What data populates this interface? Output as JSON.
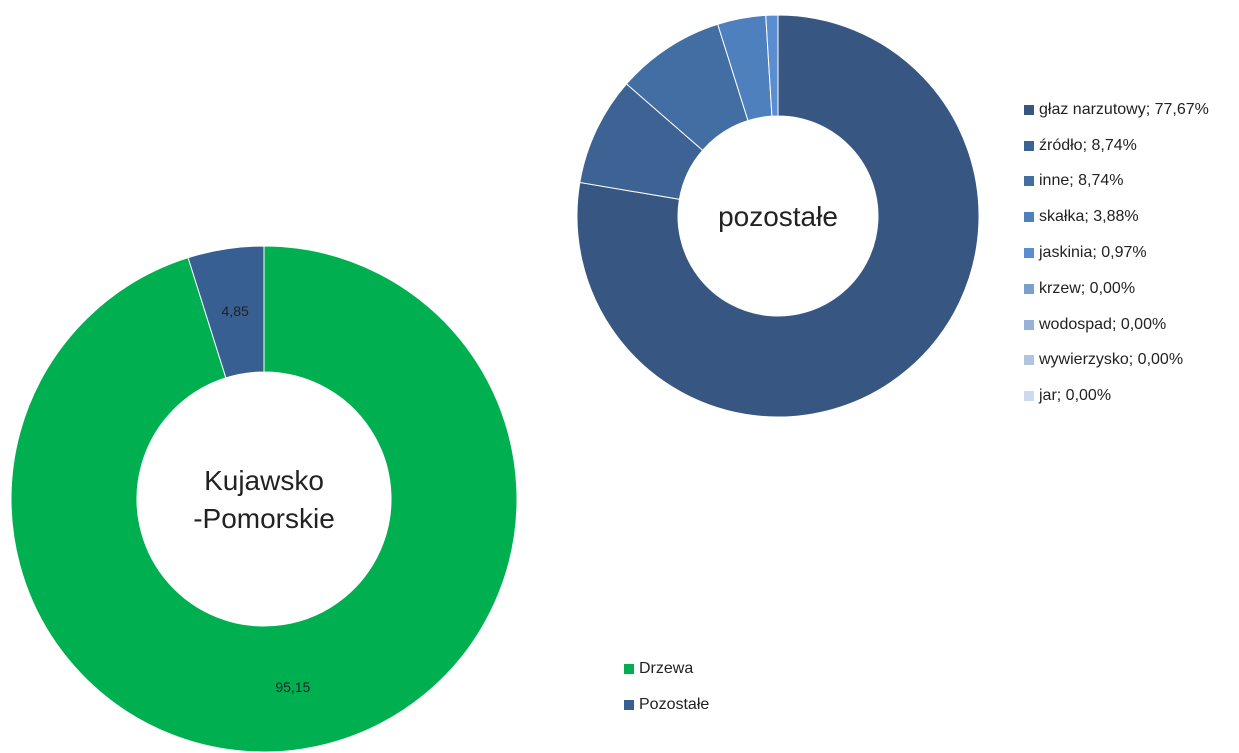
{
  "chart_data": [
    {
      "type": "donut",
      "center_label_lines": [
        "Kujawsko",
        "-Pomorskie"
      ],
      "series": [
        {
          "name": "Drzewa",
          "value": 95.15,
          "label": "95,15",
          "color": "#00b050"
        },
        {
          "name": "Pozostałe",
          "value": 4.85,
          "label": "4,85",
          "color": "#375f92"
        }
      ],
      "legend": {
        "position": "right",
        "items": [
          "Drzewa",
          "Pozostałe"
        ]
      }
    },
    {
      "type": "donut",
      "center_label_lines": [
        "pozostałe"
      ],
      "series": [
        {
          "name": "głaz narzutowy",
          "value": 77.67,
          "color": "#375782"
        },
        {
          "name": "źródło",
          "value": 8.74,
          "color": "#3c6394"
        },
        {
          "name": "inne",
          "value": 8.74,
          "color": "#436ea3"
        },
        {
          "name": "skałka",
          "value": 3.88,
          "color": "#4f80be"
        },
        {
          "name": "jaskinia",
          "value": 0.97,
          "color": "#5b8ed0"
        },
        {
          "name": "krzew",
          "value": 0.0,
          "color": "#7b9fcf"
        },
        {
          "name": "wodospad",
          "value": 0.0,
          "color": "#97b1d8"
        },
        {
          "name": "wywierzysko",
          "value": 0.0,
          "color": "#b2c4e2"
        },
        {
          "name": "jar",
          "value": 0.0,
          "color": "#cfd9ee"
        }
      ],
      "legend": {
        "position": "right",
        "items": [
          "głaz narzutowy; 77,67%",
          "źródło; 8,74%",
          "inne; 8,74%",
          "skałka; 3,88%",
          "jaskinia; 0,97%",
          "krzew; 0,00%",
          "wodospad; 0,00%",
          "wywierzysko; 0,00%",
          "jar; 0,00%"
        ]
      }
    }
  ]
}
